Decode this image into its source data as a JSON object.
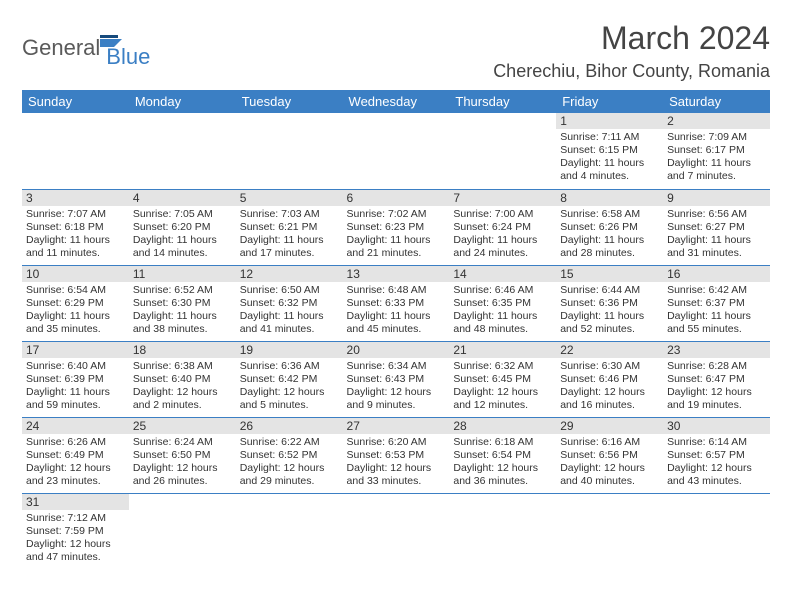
{
  "logo": {
    "part1": "General",
    "part2": "Blue"
  },
  "title": {
    "month": "March 2024",
    "location": "Cherechiu, Bihor County, Romania"
  },
  "colors": {
    "header_bg": "#3b7fc4",
    "header_text": "#ffffff",
    "daynum_bg": "#e4e4e4",
    "row_border": "#3b7fc4",
    "text": "#333333",
    "logo_gray": "#5a5a5a",
    "logo_blue": "#3b7fc4"
  },
  "dayHeaders": [
    "Sunday",
    "Monday",
    "Tuesday",
    "Wednesday",
    "Thursday",
    "Friday",
    "Saturday"
  ],
  "calendar": {
    "firstWeekday": 5,
    "daysInMonth": 31,
    "days": [
      {
        "n": 1,
        "sunrise": "7:11 AM",
        "sunset": "6:15 PM",
        "daylight_h": 11,
        "daylight_m": 4
      },
      {
        "n": 2,
        "sunrise": "7:09 AM",
        "sunset": "6:17 PM",
        "daylight_h": 11,
        "daylight_m": 7
      },
      {
        "n": 3,
        "sunrise": "7:07 AM",
        "sunset": "6:18 PM",
        "daylight_h": 11,
        "daylight_m": 11
      },
      {
        "n": 4,
        "sunrise": "7:05 AM",
        "sunset": "6:20 PM",
        "daylight_h": 11,
        "daylight_m": 14
      },
      {
        "n": 5,
        "sunrise": "7:03 AM",
        "sunset": "6:21 PM",
        "daylight_h": 11,
        "daylight_m": 17
      },
      {
        "n": 6,
        "sunrise": "7:02 AM",
        "sunset": "6:23 PM",
        "daylight_h": 11,
        "daylight_m": 21
      },
      {
        "n": 7,
        "sunrise": "7:00 AM",
        "sunset": "6:24 PM",
        "daylight_h": 11,
        "daylight_m": 24
      },
      {
        "n": 8,
        "sunrise": "6:58 AM",
        "sunset": "6:26 PM",
        "daylight_h": 11,
        "daylight_m": 28
      },
      {
        "n": 9,
        "sunrise": "6:56 AM",
        "sunset": "6:27 PM",
        "daylight_h": 11,
        "daylight_m": 31
      },
      {
        "n": 10,
        "sunrise": "6:54 AM",
        "sunset": "6:29 PM",
        "daylight_h": 11,
        "daylight_m": 35
      },
      {
        "n": 11,
        "sunrise": "6:52 AM",
        "sunset": "6:30 PM",
        "daylight_h": 11,
        "daylight_m": 38
      },
      {
        "n": 12,
        "sunrise": "6:50 AM",
        "sunset": "6:32 PM",
        "daylight_h": 11,
        "daylight_m": 41
      },
      {
        "n": 13,
        "sunrise": "6:48 AM",
        "sunset": "6:33 PM",
        "daylight_h": 11,
        "daylight_m": 45
      },
      {
        "n": 14,
        "sunrise": "6:46 AM",
        "sunset": "6:35 PM",
        "daylight_h": 11,
        "daylight_m": 48
      },
      {
        "n": 15,
        "sunrise": "6:44 AM",
        "sunset": "6:36 PM",
        "daylight_h": 11,
        "daylight_m": 52
      },
      {
        "n": 16,
        "sunrise": "6:42 AM",
        "sunset": "6:37 PM",
        "daylight_h": 11,
        "daylight_m": 55
      },
      {
        "n": 17,
        "sunrise": "6:40 AM",
        "sunset": "6:39 PM",
        "daylight_h": 11,
        "daylight_m": 59
      },
      {
        "n": 18,
        "sunrise": "6:38 AM",
        "sunset": "6:40 PM",
        "daylight_h": 12,
        "daylight_m": 2
      },
      {
        "n": 19,
        "sunrise": "6:36 AM",
        "sunset": "6:42 PM",
        "daylight_h": 12,
        "daylight_m": 5
      },
      {
        "n": 20,
        "sunrise": "6:34 AM",
        "sunset": "6:43 PM",
        "daylight_h": 12,
        "daylight_m": 9
      },
      {
        "n": 21,
        "sunrise": "6:32 AM",
        "sunset": "6:45 PM",
        "daylight_h": 12,
        "daylight_m": 12
      },
      {
        "n": 22,
        "sunrise": "6:30 AM",
        "sunset": "6:46 PM",
        "daylight_h": 12,
        "daylight_m": 16
      },
      {
        "n": 23,
        "sunrise": "6:28 AM",
        "sunset": "6:47 PM",
        "daylight_h": 12,
        "daylight_m": 19
      },
      {
        "n": 24,
        "sunrise": "6:26 AM",
        "sunset": "6:49 PM",
        "daylight_h": 12,
        "daylight_m": 23
      },
      {
        "n": 25,
        "sunrise": "6:24 AM",
        "sunset": "6:50 PM",
        "daylight_h": 12,
        "daylight_m": 26
      },
      {
        "n": 26,
        "sunrise": "6:22 AM",
        "sunset": "6:52 PM",
        "daylight_h": 12,
        "daylight_m": 29
      },
      {
        "n": 27,
        "sunrise": "6:20 AM",
        "sunset": "6:53 PM",
        "daylight_h": 12,
        "daylight_m": 33
      },
      {
        "n": 28,
        "sunrise": "6:18 AM",
        "sunset": "6:54 PM",
        "daylight_h": 12,
        "daylight_m": 36
      },
      {
        "n": 29,
        "sunrise": "6:16 AM",
        "sunset": "6:56 PM",
        "daylight_h": 12,
        "daylight_m": 40
      },
      {
        "n": 30,
        "sunrise": "6:14 AM",
        "sunset": "6:57 PM",
        "daylight_h": 12,
        "daylight_m": 43
      },
      {
        "n": 31,
        "sunrise": "7:12 AM",
        "sunset": "7:59 PM",
        "daylight_h": 12,
        "daylight_m": 47
      }
    ]
  }
}
